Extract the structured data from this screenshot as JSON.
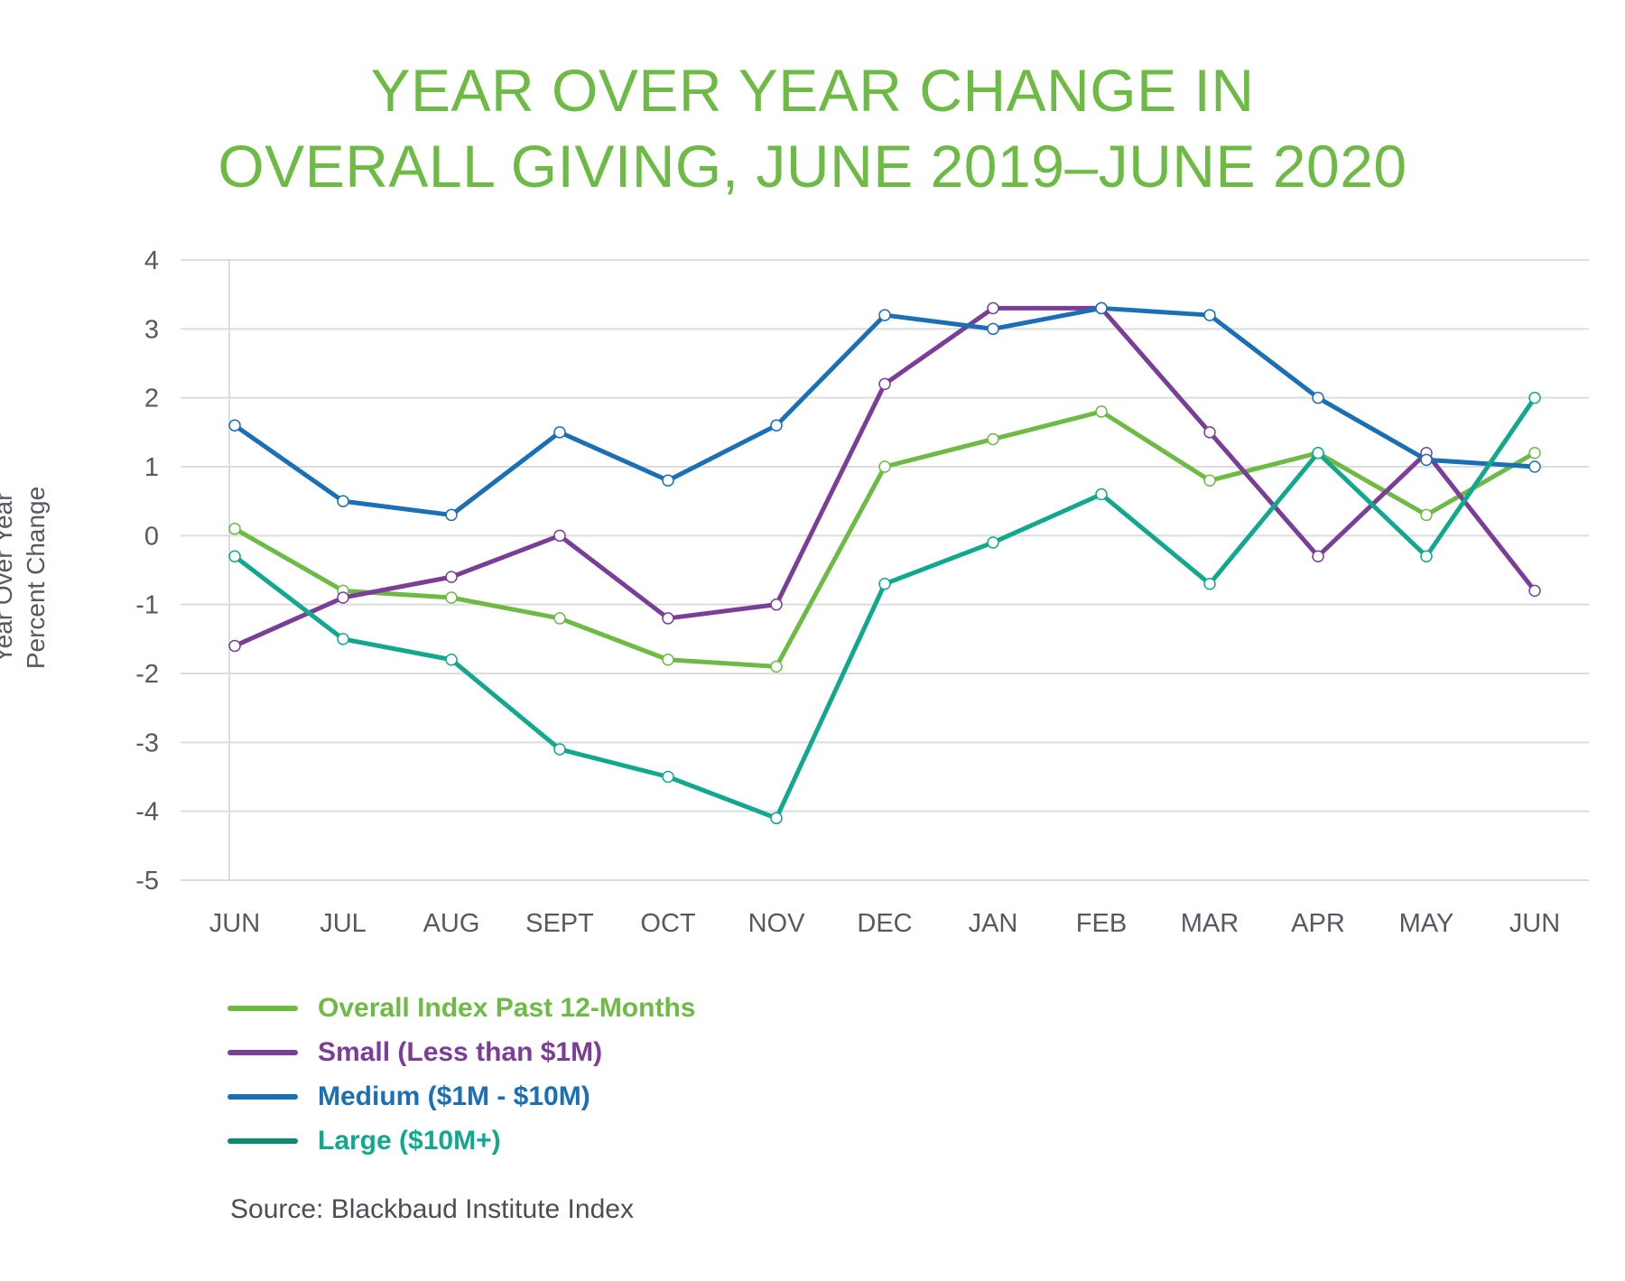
{
  "chart_data": {
    "type": "line",
    "title": [
      "YEAR OVER YEAR CHANGE IN",
      "OVERALL GIVING, JUNE 2019–JUNE 2020"
    ],
    "ylabel": [
      "Year Over Year",
      "Percent Change"
    ],
    "xlabel": "",
    "categories": [
      "JUN",
      "JUL",
      "AUG",
      "SEPT",
      "OCT",
      "NOV",
      "DEC",
      "JAN",
      "FEB",
      "MAR",
      "APR",
      "MAY",
      "JUN"
    ],
    "ylim": [
      -5,
      4
    ],
    "yticks": [
      4,
      3,
      2,
      1,
      0,
      -1,
      -2,
      -3,
      -4,
      -5
    ],
    "grid": true,
    "legend_position": "bottom-left",
    "series": [
      {
        "name": "Overall Index Past 12-Months",
        "color": "#6dbb45",
        "values": [
          0.1,
          -0.8,
          -0.9,
          -1.2,
          -1.8,
          -1.9,
          1.0,
          1.4,
          1.8,
          0.8,
          1.2,
          0.3,
          1.2
        ]
      },
      {
        "name": "Small (Less than $1M)",
        "color": "#7b3e97",
        "values": [
          -1.6,
          -0.9,
          -0.6,
          0.0,
          -1.2,
          -1.0,
          2.2,
          3.3,
          3.3,
          1.5,
          -0.3,
          1.2,
          -0.8
        ]
      },
      {
        "name": "Medium ($1M - $10M)",
        "color": "#1a6fb5",
        "values": [
          1.6,
          0.5,
          0.3,
          1.5,
          0.8,
          1.6,
          3.2,
          3.0,
          3.3,
          3.2,
          2.0,
          1.1,
          1.0
        ]
      },
      {
        "name": "Large ($10M+)",
        "color": "#12a88d",
        "values": [
          -0.3,
          -1.5,
          -1.8,
          -3.1,
          -3.5,
          -4.1,
          -0.7,
          -0.1,
          0.6,
          -0.7,
          1.2,
          -0.3,
          2.0
        ]
      }
    ]
  },
  "legend": {
    "items": [
      {
        "label": "Overall Index Past 12-Months",
        "color": "#6dbb45",
        "swatch": "#6dbb45"
      },
      {
        "label": "Small (Less than $1M)",
        "color": "#7b3e97",
        "swatch": "#7b3e97"
      },
      {
        "label": "Medium ($1M - $10M)",
        "color": "#1a6fb5",
        "swatch": "#1a6fb5"
      },
      {
        "label": "Large ($10M+)",
        "color": "#12a88d",
        "swatch": "#0e8a73"
      }
    ]
  },
  "source": "Source: Blackbaud Institute Index"
}
